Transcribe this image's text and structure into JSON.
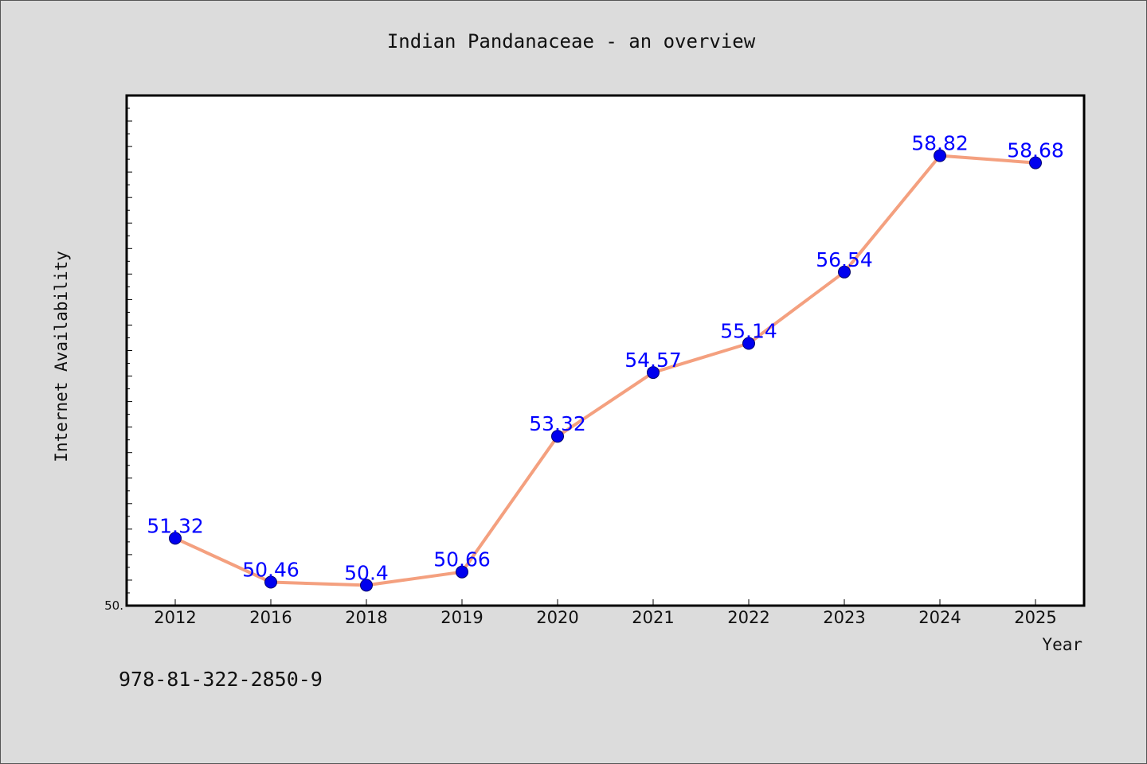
{
  "chart_data": {
    "type": "line",
    "title": "Indian Pandanaceae - an overview",
    "xlabel": "Year",
    "ylabel": "Internet Availability",
    "categories": [
      "2012",
      "2016",
      "2018",
      "2019",
      "2020",
      "2021",
      "2022",
      "2023",
      "2024",
      "2025"
    ],
    "series": [
      {
        "values": [
          51.32,
          50.46,
          50.4,
          50.66,
          53.32,
          54.57,
          55.14,
          56.54,
          58.82,
          58.68
        ],
        "labels": [
          "51.32",
          "50.46",
          "50.4",
          "50.66",
          "53.32",
          "54.57",
          "55.14",
          "56.54",
          "58.82",
          "58.68"
        ],
        "line_color": "#f4a07f",
        "marker_color": "#0000ee"
      }
    ],
    "ylim": [
      50.0,
      60.0
    ],
    "ytick_label": "50.",
    "grid": false,
    "background": "#dcdcdc",
    "plot_background": "#ffffff"
  },
  "footer_text": "978-81-322-2850-9"
}
